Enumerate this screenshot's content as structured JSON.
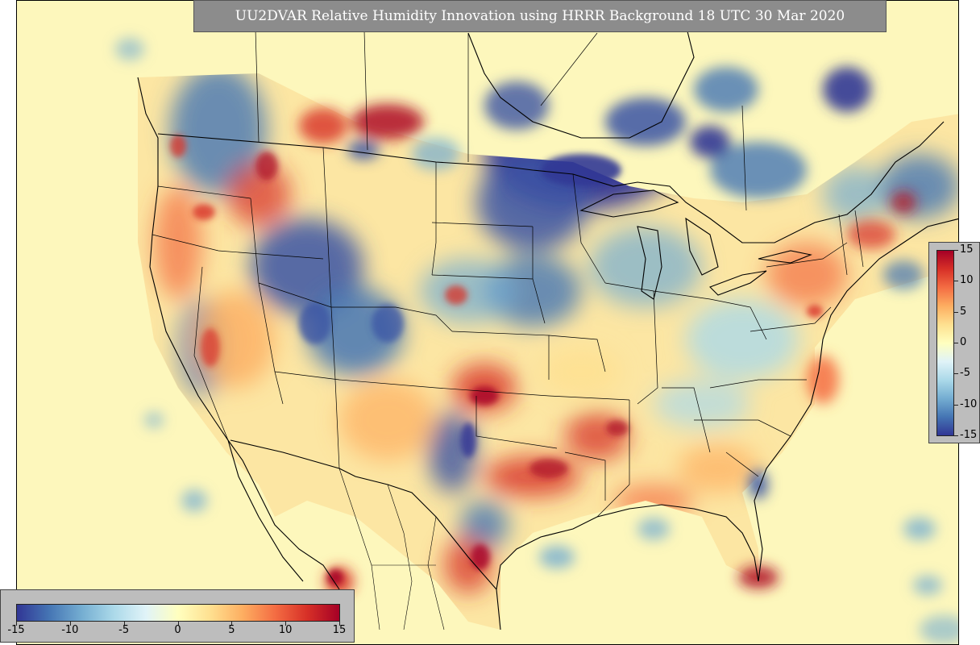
{
  "title": "UU2DVAR Relative Humidity Innovation using HRRR Background 18 UTC 30 Mar 2020",
  "colorbar": {
    "min": -15,
    "max": 15,
    "tick_labels": [
      "-15",
      "-10",
      "-5",
      "0",
      "5",
      "10",
      "15"
    ],
    "colors": [
      "#313695",
      "#4575b4",
      "#74add1",
      "#abd9e9",
      "#e0f3f8",
      "#ffffbf",
      "#fee090",
      "#fdae61",
      "#f46d43",
      "#d73027",
      "#a50026"
    ]
  },
  "map": {
    "variable": "Relative Humidity Innovation",
    "background_color": "#fdf7bc",
    "land_base_color": "#fde9a6",
    "border_color": "#000000"
  }
}
